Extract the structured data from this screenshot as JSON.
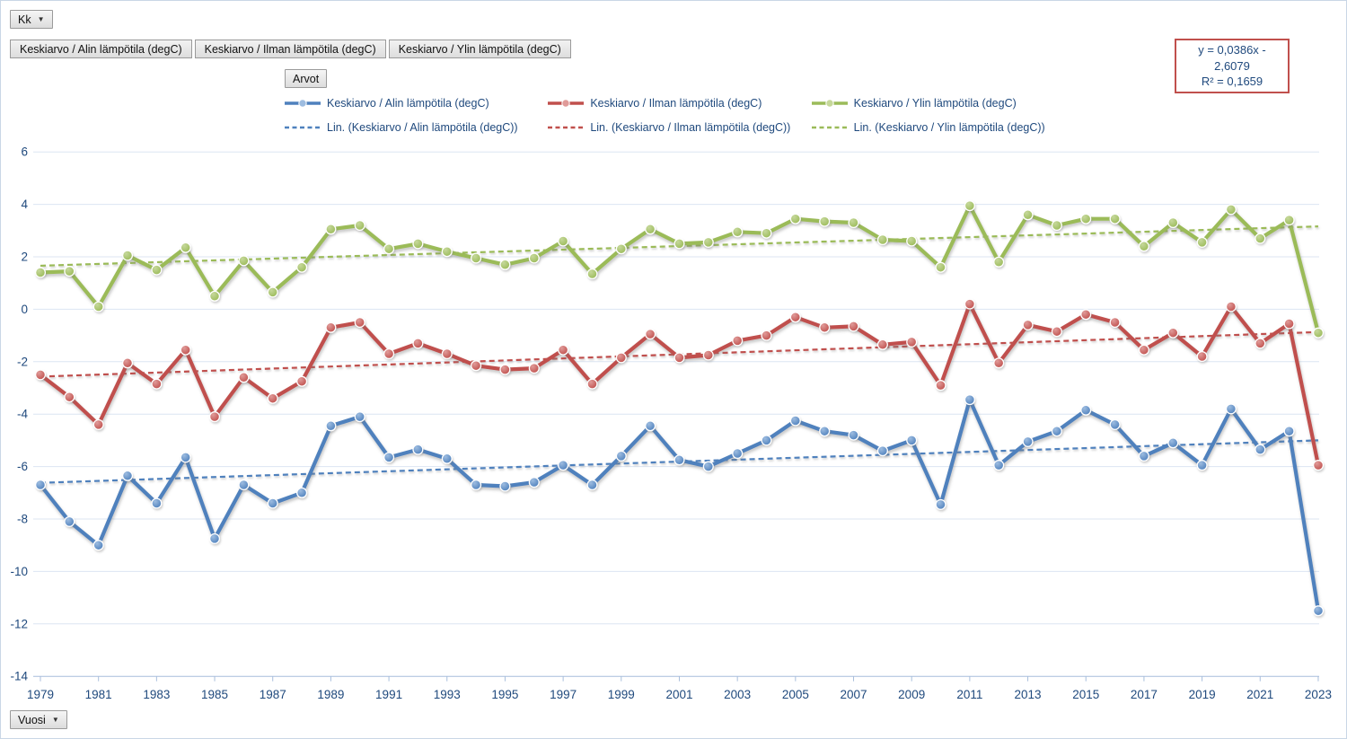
{
  "buttons": {
    "kk": "Kk",
    "vuosi": "Vuosi",
    "arvot": "Arvot"
  },
  "field_buttons": [
    {
      "label": "Keskiarvo / Alin lämpötila (degC)"
    },
    {
      "label": "Keskiarvo / Ilman lämpötila (degC)"
    },
    {
      "label": "Keskiarvo / Ylin lämpötila (degC)"
    }
  ],
  "equation": {
    "line1": "y = 0,0386x - 2,6079",
    "line2": "R² = 0,1659",
    "border_color": "#c0504d",
    "text_color": "#1f497d"
  },
  "legend": {
    "series_labels": [
      "Keskiarvo / Alin lämpötila (degC)",
      "Keskiarvo / Ilman lämpötila (degC)",
      "Keskiarvo / Ylin lämpötila (degC)"
    ],
    "trendline_labels": [
      "Lin. (Keskiarvo / Alin lämpötila (degC))",
      "Lin. (Keskiarvo / Ilman lämpötila (degC))",
      "Lin. (Keskiarvo / Ylin lämpötila (degC))"
    ]
  },
  "chart_data": {
    "type": "line",
    "x_label_field": "Vuosi",
    "value_field": "Arvot",
    "x_range": [
      1979,
      2023
    ],
    "xtick_step": 2,
    "ylim": [
      -14,
      6
    ],
    "ytick_step": 2,
    "grid": true,
    "legend_position": "top",
    "axis_text_color": "#1f497d",
    "gridline_color": "#dce5f2",
    "axis_line_color": "#a8bedc",
    "series": [
      {
        "name": "Keskiarvo / Alin lämpötila (degC)",
        "color": "#4f81bd",
        "marker_light": "#9dbce0",
        "values": [
          -6.7,
          -8.1,
          -9.0,
          -6.35,
          -7.4,
          -5.65,
          -8.75,
          -6.7,
          -7.4,
          -7.0,
          -4.45,
          -4.1,
          -5.65,
          -5.35,
          -5.7,
          -6.7,
          -6.75,
          -6.6,
          -5.95,
          -6.7,
          -5.6,
          -4.45,
          -5.75,
          -6.0,
          -5.5,
          -5.0,
          -4.25,
          -4.65,
          -4.8,
          -5.4,
          -5.0,
          -7.45,
          -3.45,
          -5.95,
          -5.05,
          -4.65,
          -3.85,
          -4.4,
          -5.6,
          -5.1,
          -5.95,
          -3.8,
          -5.35,
          -4.65,
          -11.5
        ]
      },
      {
        "name": "Keskiarvo / Ilman lämpötila (degC)",
        "color": "#c0504d",
        "marker_light": "#e09b99",
        "values": [
          -2.5,
          -3.35,
          -4.4,
          -2.05,
          -2.85,
          -1.55,
          -4.1,
          -2.6,
          -3.4,
          -2.75,
          -0.7,
          -0.5,
          -1.7,
          -1.3,
          -1.7,
          -2.15,
          -2.3,
          -2.25,
          -1.55,
          -2.85,
          -1.85,
          -0.95,
          -1.85,
          -1.75,
          -1.2,
          -1.0,
          -0.3,
          -0.7,
          -0.65,
          -1.35,
          -1.25,
          -2.9,
          0.2,
          -2.05,
          -0.6,
          -0.85,
          -0.2,
          -0.5,
          -1.55,
          -0.9,
          -1.8,
          0.1,
          -1.3,
          -0.55,
          -5.95
        ]
      },
      {
        "name": "Keskiarvo / Ylin lämpötila (degC)",
        "color": "#9bbb59",
        "marker_light": "#c6d89b",
        "values": [
          1.4,
          1.45,
          0.1,
          2.05,
          1.5,
          2.35,
          0.5,
          1.85,
          0.65,
          1.6,
          3.05,
          3.2,
          2.3,
          2.5,
          2.2,
          1.95,
          1.7,
          1.95,
          2.6,
          1.35,
          2.3,
          3.05,
          2.5,
          2.55,
          2.95,
          2.9,
          3.45,
          3.35,
          3.3,
          2.65,
          2.6,
          1.6,
          3.95,
          1.8,
          3.6,
          3.2,
          3.45,
          3.45,
          2.4,
          3.3,
          2.55,
          3.8,
          2.7,
          3.4,
          -0.9
        ]
      }
    ],
    "trendlines": [
      {
        "name": "Lin. (Keskiarvo / Alin lämpötila (degC))",
        "color": "#4f81bd",
        "start": -6.62,
        "end": -5.0
      },
      {
        "name": "Lin. (Keskiarvo / Ilman lämpötila (degC))",
        "color": "#c0504d",
        "start": -2.57,
        "end": -0.87
      },
      {
        "name": "Lin. (Keskiarvo / Ylin lämpötila (degC))",
        "color": "#9bbb59",
        "start": 1.66,
        "end": 3.16
      }
    ]
  }
}
